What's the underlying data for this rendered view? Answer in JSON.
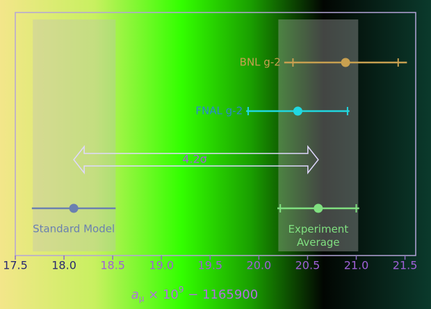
{
  "chart_data": {
    "type": "errorbar",
    "xlim": [
      17.5,
      21.61
    ],
    "xticks": [
      17.5,
      {
        "value": 18,
        "label": "18.0"
      },
      18.5,
      {
        "value": 19,
        "label": "19.0"
      },
      19.5,
      {
        "value": 20,
        "label": "20.0"
      },
      20.5,
      {
        "value": 21,
        "label": "21.0"
      },
      21.5
    ],
    "x_label": {
      "base": "a",
      "sub": "μ",
      "mid": " × 10",
      "sup": "9",
      "end": " − 1165900"
    },
    "bands": [
      {
        "lo": 17.68,
        "hi": 18.53
      },
      {
        "lo": 20.2,
        "hi": 21.02
      }
    ],
    "series": [
      {
        "name": "BNL g-2",
        "color": "#c8a050",
        "value": 20.89,
        "error": 0.63,
        "inner_error": 0.54
      },
      {
        "name": "FNAL g-2",
        "color": "#20d8e0",
        "value": 20.4,
        "error": 0.53,
        "inner_error": 0.51
      },
      {
        "name": "Standard Model",
        "color": "#6a80b0",
        "value": 18.1,
        "error": 0.43
      },
      {
        "name": [
          "Experiment",
          "Average"
        ],
        "color": "#80e080",
        "value": 20.61,
        "error": 0.42,
        "inner_error": 0.39
      }
    ],
    "annotation": "4.2σ"
  }
}
